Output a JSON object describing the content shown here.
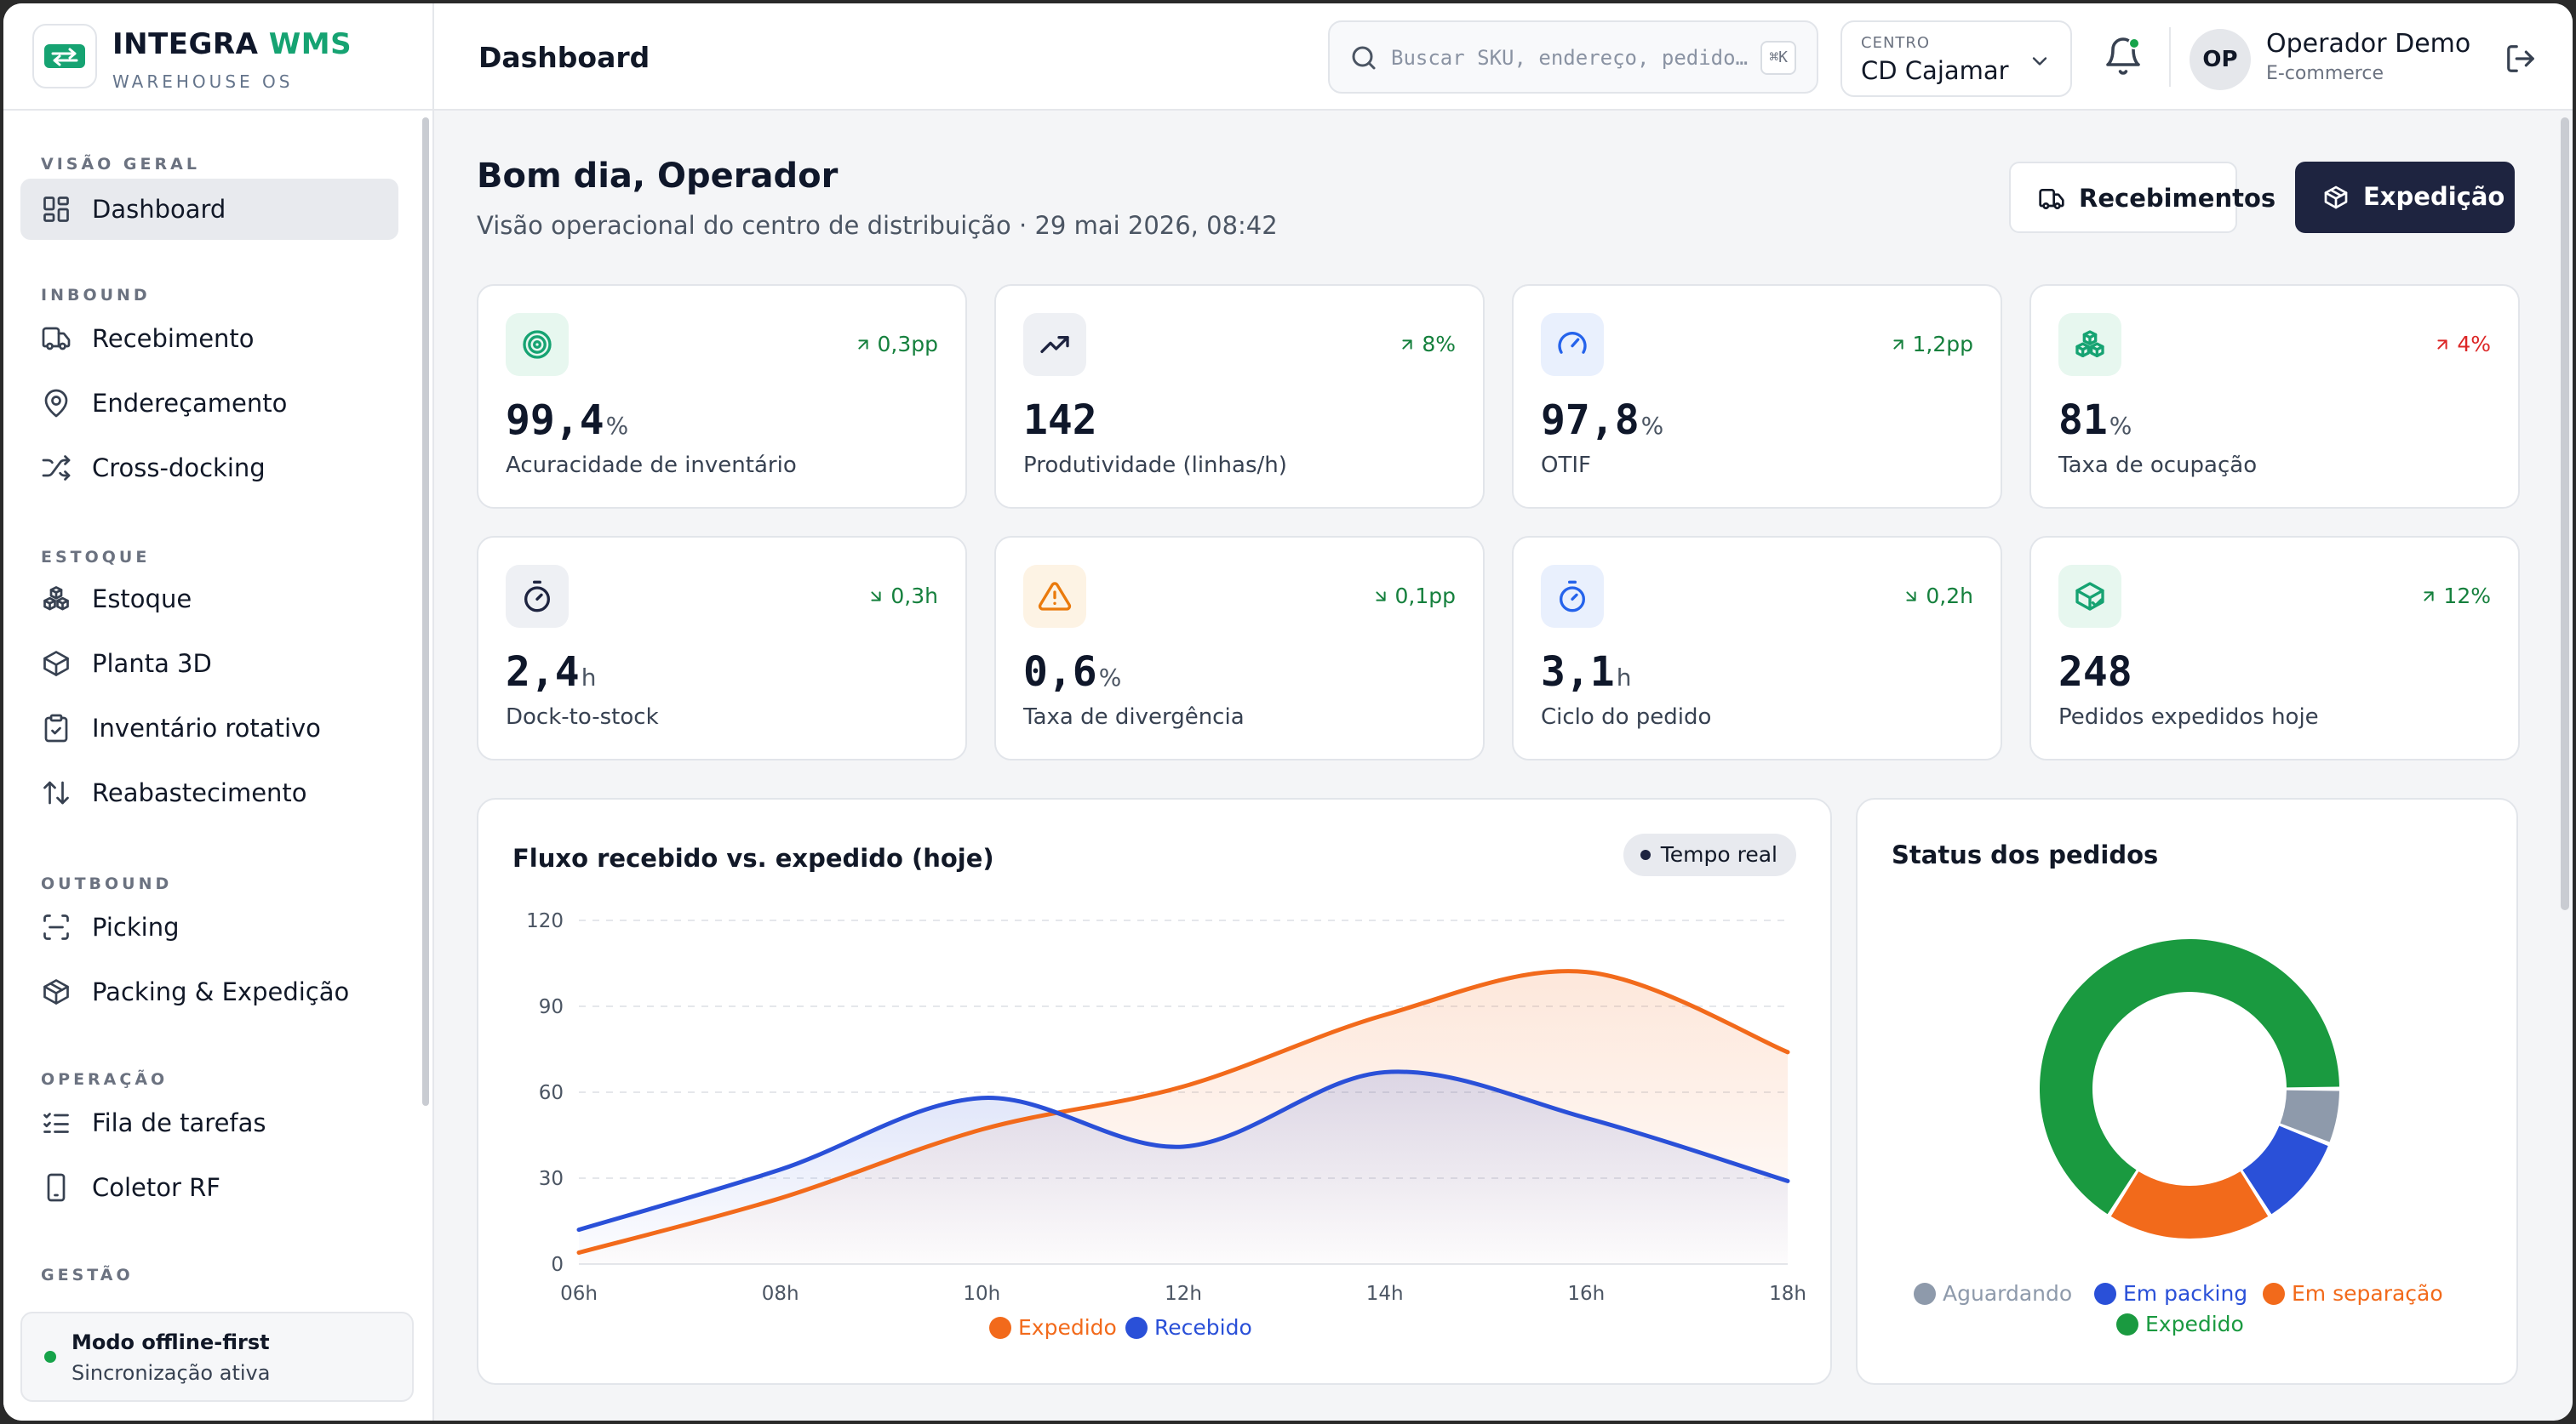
{
  "brand": {
    "name_main": "INTEGRA",
    "name_accent": "WMS",
    "subtitle": "WAREHOUSE OS"
  },
  "sidebar": {
    "sections": [
      {
        "title": "VISÃO GERAL",
        "items": [
          {
            "label": "Dashboard",
            "icon": "dashboard-icon",
            "active": true
          }
        ]
      },
      {
        "title": "INBOUND",
        "items": [
          {
            "label": "Recebimento",
            "icon": "truck-icon"
          },
          {
            "label": "Endereçamento",
            "icon": "map-pin-icon"
          },
          {
            "label": "Cross-docking",
            "icon": "shuffle-icon"
          }
        ]
      },
      {
        "title": "ESTOQUE",
        "items": [
          {
            "label": "Estoque",
            "icon": "boxes-icon"
          },
          {
            "label": "Planta 3D",
            "icon": "cube-icon"
          },
          {
            "label": "Inventário rotativo",
            "icon": "clipboard-check-icon"
          },
          {
            "label": "Reabastecimento",
            "icon": "arrows-up-down-icon"
          }
        ]
      },
      {
        "title": "OUTBOUND",
        "items": [
          {
            "label": "Picking",
            "icon": "scan-icon"
          },
          {
            "label": "Packing & Expedição",
            "icon": "package-icon"
          }
        ]
      },
      {
        "title": "OPERAÇÃO",
        "items": [
          {
            "label": "Fila de tarefas",
            "icon": "list-checks-icon"
          },
          {
            "label": "Coletor RF",
            "icon": "smartphone-icon"
          }
        ]
      },
      {
        "title": "GESTÃO",
        "items": []
      }
    ],
    "offline": {
      "title": "Modo offline-first",
      "subtitle": "Sincronização ativa"
    }
  },
  "header": {
    "title": "Dashboard",
    "search_placeholder": "Buscar SKU, endereço, pedido…",
    "search_shortcut": "⌘K",
    "centro_label": "CENTRO",
    "centro_value": "CD Cajamar",
    "user_initials": "OP",
    "user_name": "Operador Demo",
    "user_role": "E-commerce"
  },
  "greeting": {
    "title": "Bom dia, Operador",
    "subtitle": "Visão operacional do centro de distribuição · 29 mai 2026, 08:42"
  },
  "actions": {
    "receive": "Recebimentos",
    "ship": "Expedição"
  },
  "kpis": [
    {
      "value": "99,4",
      "unit": "%",
      "label": "Acuracidade de inventário",
      "trend": "0,3pp",
      "trend_dir": "up",
      "trend_status": "good",
      "icon": "target-icon",
      "icon_bg": "#e7f7ef",
      "icon_color": "#16a372"
    },
    {
      "value": "142",
      "unit": "",
      "label": "Produtividade (linhas/h)",
      "trend": "8%",
      "trend_dir": "up",
      "trend_status": "good",
      "icon": "trending-up-icon",
      "icon_bg": "#eef0f4",
      "icon_color": "#1e2440"
    },
    {
      "value": "97,8",
      "unit": "%",
      "label": "OTIF",
      "trend": "1,2pp",
      "trend_dir": "up",
      "trend_status": "good",
      "icon": "gauge-icon",
      "icon_bg": "#e9f0fd",
      "icon_color": "#2563eb"
    },
    {
      "value": "81",
      "unit": "%",
      "label": "Taxa de ocupação",
      "trend": "4%",
      "trend_dir": "up",
      "trend_status": "bad",
      "icon": "boxes-icon",
      "icon_bg": "#e7f7ef",
      "icon_color": "#16a372"
    },
    {
      "value": "2,4",
      "unit": "h",
      "label": "Dock-to-stock",
      "trend": "0,3h",
      "trend_dir": "down",
      "trend_status": "good",
      "icon": "timer-icon",
      "icon_bg": "#eef0f4",
      "icon_color": "#1e2440"
    },
    {
      "value": "0,6",
      "unit": "%",
      "label": "Taxa de divergência",
      "trend": "0,1pp",
      "trend_dir": "down",
      "trend_status": "good",
      "icon": "alert-triangle-icon",
      "icon_bg": "#fdf3e4",
      "icon_color": "#ea7a0c"
    },
    {
      "value": "3,1",
      "unit": "h",
      "label": "Ciclo do pedido",
      "trend": "0,2h",
      "trend_dir": "down",
      "trend_status": "good",
      "icon": "timer-icon",
      "icon_bg": "#e9f0fd",
      "icon_color": "#2563eb"
    },
    {
      "value": "248",
      "unit": "",
      "label": "Pedidos expedidos hoje",
      "trend": "12%",
      "trend_dir": "up",
      "trend_status": "good",
      "icon": "package-check-icon",
      "icon_bg": "#e7f7ef",
      "icon_color": "#16a372"
    }
  ],
  "flow_panel": {
    "title": "Fluxo recebido vs. expedido (hoje)",
    "badge": "Tempo real"
  },
  "status_panel": {
    "title": "Status dos pedidos"
  },
  "chart_data": [
    {
      "type": "area",
      "title": "Fluxo recebido vs. expedido (hoje)",
      "x": [
        "06h",
        "08h",
        "10h",
        "12h",
        "14h",
        "16h",
        "18h"
      ],
      "ylim": [
        0,
        120
      ],
      "yticks": [
        0,
        30,
        60,
        90,
        120
      ],
      "grid": true,
      "legend_position": "bottom",
      "series": [
        {
          "name": "Expedido",
          "color": "#f26a1b",
          "values": [
            4,
            23,
            47,
            62,
            87,
            102,
            74
          ]
        },
        {
          "name": "Recebido",
          "color": "#2a50d8",
          "values": [
            12,
            33,
            58,
            41,
            67,
            51,
            29
          ]
        }
      ]
    },
    {
      "type": "pie",
      "title": "Status dos pedidos",
      "legend_position": "bottom",
      "slices": [
        {
          "name": "Aguardando",
          "color": "#8e9aab",
          "value": 6
        },
        {
          "name": "Em packing",
          "color": "#2a50d8",
          "value": 10
        },
        {
          "name": "Em separação",
          "color": "#f26a1b",
          "value": 18
        },
        {
          "name": "Expedido",
          "color": "#1a9a40",
          "value": 66
        }
      ]
    }
  ]
}
